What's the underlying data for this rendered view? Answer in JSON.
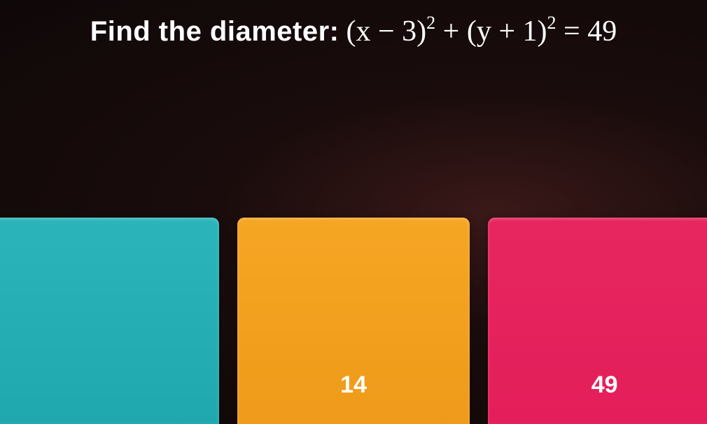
{
  "question": {
    "prompt": "Find the diameter:",
    "equation_html": "(x − 3)<span class='sup'>2</span> + (y + 1)<span class='sup'>2</span> = 49"
  },
  "answers": {
    "card1": {
      "label": "",
      "color": "teal"
    },
    "card2": {
      "label": "14",
      "color": "orange"
    },
    "card3": {
      "label": "49",
      "color": "pink"
    }
  },
  "colors": {
    "teal": "#2bb5bb",
    "orange": "#f5a623",
    "pink": "#e7265f",
    "text": "#ffffff",
    "background_dark": "#0f0808"
  }
}
